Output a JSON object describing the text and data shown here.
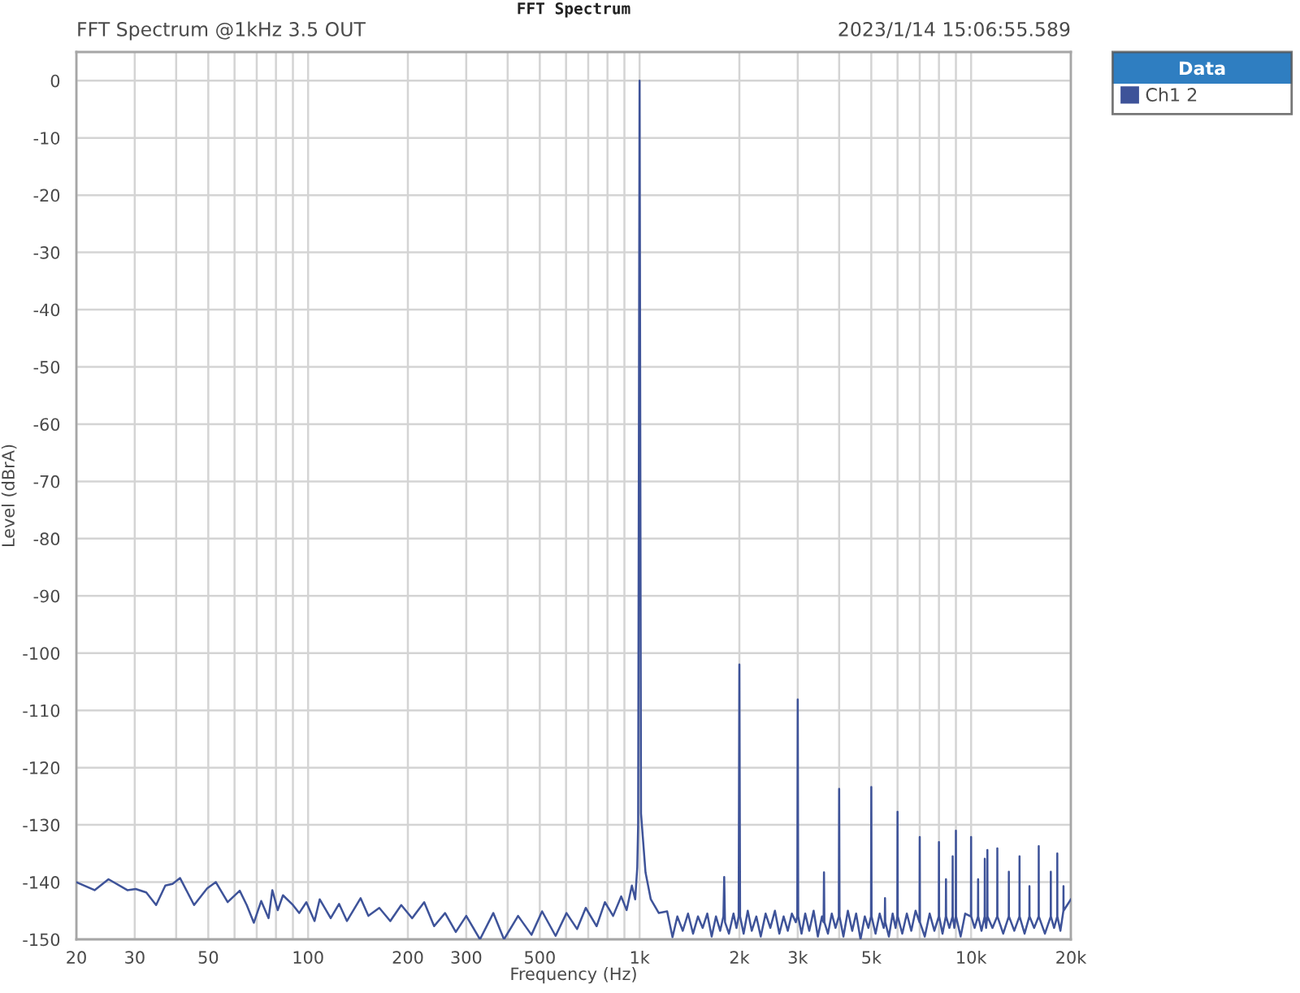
{
  "chart_data": {
    "type": "line",
    "title": "FFT Spectrum",
    "subtitle": "FFT Spectrum @1kHz 3.5 OUT",
    "annotations": [
      "2023/1/14 15:06:55.589"
    ],
    "xlabel": "Frequency (Hz)",
    "ylabel": "Level (dBrA)",
    "log": "x",
    "grid": true,
    "legend": "right",
    "legend_title": "Data",
    "line_style": "solid",
    "xlim": [
      20,
      20000
    ],
    "xticks": [
      20,
      30,
      {
        "value": 40,
        "label": null
      },
      50,
      {
        "value": 60,
        "label": null
      },
      {
        "value": 70,
        "label": null
      },
      {
        "value": 80,
        "label": null
      },
      {
        "value": 90,
        "label": null
      },
      100,
      200,
      300,
      {
        "value": 400,
        "label": null
      },
      500,
      {
        "value": 600,
        "label": null
      },
      {
        "value": 700,
        "label": null
      },
      {
        "value": 800,
        "label": null
      },
      {
        "value": 900,
        "label": null
      },
      {
        "value": 1000,
        "label": "1k"
      },
      {
        "value": 2000,
        "label": "2k"
      },
      {
        "value": 3000,
        "label": "3k"
      },
      {
        "value": 4000,
        "label": null
      },
      {
        "value": 5000,
        "label": "5k"
      },
      {
        "value": 6000,
        "label": null
      },
      {
        "value": 7000,
        "label": null
      },
      {
        "value": 8000,
        "label": null
      },
      {
        "value": 9000,
        "label": null
      },
      {
        "value": 10000,
        "label": "10k"
      },
      {
        "value": 20000,
        "label": "20k"
      }
    ],
    "ylim": [
      -150,
      5
    ],
    "yticks": [
      0,
      -10,
      -20,
      -30,
      -40,
      -50,
      -60,
      -70,
      -80,
      -90,
      -100,
      -110,
      -120,
      -130,
      -140,
      -150
    ],
    "x": [
      20,
      22.7,
      25,
      28.5,
      30.2,
      32.5,
      34.8,
      37.1,
      39,
      41.1,
      45.3,
      49.6,
      52.7,
      57.2,
      62.2,
      65.3,
      68.6,
      72.2,
      76,
      78,
      81,
      84,
      90,
      94,
      98.8,
      104.6,
      108.4,
      117,
      124,
      131,
      144,
      152,
      164,
      177,
      191,
      206,
      224,
      240,
      259,
      279,
      300,
      330,
      362,
      390,
      430,
      472,
      508,
      558,
      602,
      648,
      688,
      742,
      786,
      832,
      880,
      914,
      948,
      970,
      984,
      990,
      1000,
      1010,
      1042,
      1081,
      1143,
      1211,
      1257,
      1300,
      1350,
      1400,
      1450,
      1500,
      1550,
      1600,
      1650,
      1700,
      1750,
      1790,
      1800,
      1810,
      1860,
      1920,
      1960,
      1990,
      2000,
      2010,
      2060,
      2120,
      2180,
      2250,
      2320,
      2400,
      2480,
      2560,
      2640,
      2720,
      2800,
      2880,
      2960,
      2990,
      3000,
      3010,
      3080,
      3160,
      3250,
      3350,
      3450,
      3550,
      3590,
      3600,
      3610,
      3700,
      3800,
      3900,
      3990,
      4000,
      4010,
      4120,
      4250,
      4380,
      4500,
      4640,
      4780,
      4900,
      4990,
      5000,
      5010,
      5150,
      5300,
      5450,
      5490,
      5500,
      5510,
      5650,
      5800,
      5920,
      5990,
      6000,
      6010,
      6200,
      6400,
      6600,
      6800,
      6990,
      7000,
      7010,
      7250,
      7500,
      7750,
      7990,
      8000,
      8010,
      8200,
      8390,
      8400,
      8410,
      8600,
      8790,
      8800,
      8810,
      8900,
      8990,
      9000,
      9010,
      9300,
      9600,
      9990,
      10000,
      10010,
      10250,
      10490,
      10500,
      10510,
      10750,
      10990,
      11000,
      11010,
      11100,
      11190,
      11200,
      11210,
      11600,
      11990,
      12000,
      12010,
      12500,
      12990,
      13000,
      13010,
      13500,
      13990,
      14000,
      14010,
      14500,
      14990,
      15000,
      15010,
      15500,
      15990,
      16000,
      16010,
      16700,
      17390,
      17400,
      17410,
      17800,
      18190,
      18200,
      18210,
      18600,
      18990,
      19000,
      19010,
      19500,
      20000
    ],
    "series": [
      {
        "name": "Ch1 2",
        "color": "#3e5399",
        "values": [
          -140.0,
          -141.4,
          -139.5,
          -141.4,
          -141.2,
          -141.8,
          -144.0,
          -140.6,
          -140.3,
          -139.3,
          -144.0,
          -141.1,
          -140.0,
          -143.5,
          -141.5,
          -144.0,
          -147.1,
          -143.3,
          -146.3,
          -141.4,
          -144.9,
          -142.3,
          -144.0,
          -145.4,
          -143.5,
          -146.8,
          -143.0,
          -146.3,
          -143.8,
          -146.8,
          -142.8,
          -145.9,
          -144.5,
          -146.8,
          -144.0,
          -146.3,
          -143.5,
          -147.7,
          -145.4,
          -148.7,
          -145.9,
          -150,
          -145.4,
          -150,
          -145.9,
          -149.2,
          -145.1,
          -149.4,
          -145.4,
          -148.2,
          -144.5,
          -147.7,
          -143.5,
          -145.9,
          -142.5,
          -144.9,
          -140.6,
          -143.0,
          -137.4,
          -130,
          0,
          -128,
          -138.3,
          -143,
          -145.4,
          -145.1,
          -149.6,
          -146,
          -148.5,
          -145.5,
          -149,
          -146,
          -148,
          -145.5,
          -149.5,
          -146,
          -148.5,
          -146,
          -139.1,
          -147,
          -149,
          -145.5,
          -148,
          -146,
          -102,
          -146,
          -149,
          -145,
          -148.5,
          -146,
          -149.5,
          -145.5,
          -148,
          -145,
          -149,
          -146,
          -148.5,
          -145.5,
          -147,
          -146,
          -108.1,
          -146,
          -149,
          -145.5,
          -148.5,
          -145,
          -149.5,
          -146,
          -147,
          -138.3,
          -147,
          -149,
          -145.5,
          -148,
          -146,
          -123.7,
          -146,
          -149.5,
          -145,
          -148.5,
          -145.5,
          -150,
          -146,
          -148,
          -146,
          -123.4,
          -146,
          -149,
          -145.5,
          -148,
          -147,
          -142.8,
          -147,
          -149.5,
          -145.5,
          -148,
          -146,
          -127.7,
          -146,
          -149,
          -145.5,
          -148.5,
          -145,
          -147,
          -132.1,
          -147,
          -149.5,
          -145.5,
          -148.5,
          -146,
          -133,
          -146,
          -149,
          -146,
          -139.5,
          -146,
          -148,
          -146,
          -135.5,
          -146,
          -148,
          -146,
          -131,
          -146,
          -149.5,
          -145.5,
          -146,
          -132.1,
          -146,
          -148,
          -146,
          -139.5,
          -146,
          -148.5,
          -146,
          -135.9,
          -146,
          -148,
          -146,
          -134.4,
          -146,
          -148,
          -146,
          -134.1,
          -146,
          -149,
          -146,
          -138.2,
          -146,
          -148.5,
          -146,
          -135.5,
          -146,
          -149,
          -146,
          -140.7,
          -146,
          -148,
          -146,
          -133.7,
          -146,
          -149,
          -146,
          -138.2,
          -146,
          -148,
          -146,
          -135,
          -146,
          -148.5,
          -145,
          -140.7,
          -145,
          -144,
          -143
        ]
      }
    ]
  }
}
